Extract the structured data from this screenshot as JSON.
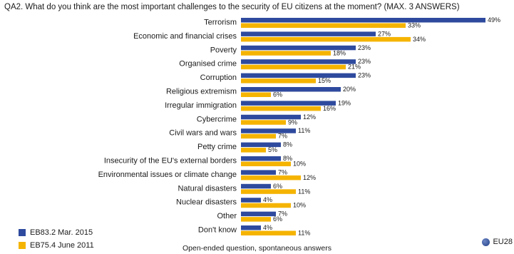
{
  "question": "QA2. What do you think are the most important challenges to the security of EU citizens at the moment? (MAX. 3 ANSWERS)",
  "footnote": "Open-ended question, spontaneous answers",
  "scope_label": "EU28",
  "colors": {
    "series1": "#2e4a9e",
    "series2": "#f5b400"
  },
  "chart_data": {
    "type": "bar",
    "orientation": "horizontal",
    "categories": [
      "Terrorism",
      "Economic and financial crises",
      "Poverty",
      "Organised crime",
      "Corruption",
      "Religious extremism",
      "Irregular immigration",
      "Cybercrime",
      "Civil wars and wars",
      "Petty crime",
      "Insecurity of the EU's external borders",
      "Environmental issues or climate change",
      "Natural disasters",
      "Nuclear disasters",
      "Other",
      "Don't know"
    ],
    "series": [
      {
        "name": "EB83.2 Mar. 2015",
        "values": [
          49,
          27,
          23,
          23,
          23,
          20,
          19,
          12,
          11,
          8,
          8,
          7,
          6,
          4,
          7,
          4
        ]
      },
      {
        "name": "EB75.4 June 2011",
        "values": [
          33,
          34,
          18,
          21,
          15,
          6,
          16,
          9,
          7,
          5,
          10,
          12,
          11,
          10,
          6,
          11
        ]
      }
    ],
    "value_suffix": "%",
    "xlim": [
      0,
      50
    ],
    "grid": false,
    "legend_position": "bottom-left"
  }
}
